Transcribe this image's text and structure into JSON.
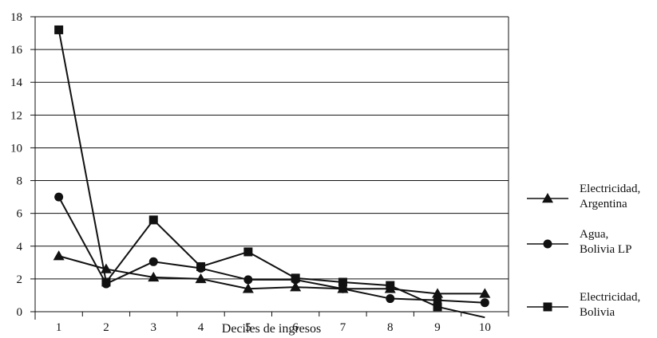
{
  "chart_data": {
    "type": "line",
    "title": "",
    "xlabel": "Deciles de ingresos",
    "ylabel": "",
    "x": [
      1,
      2,
      3,
      4,
      5,
      6,
      7,
      8,
      9,
      10
    ],
    "xlim": [
      0.5,
      10.5
    ],
    "ylim": [
      0,
      18
    ],
    "yticks": [
      0,
      2,
      4,
      6,
      8,
      10,
      12,
      14,
      16,
      18
    ],
    "grid": "horizontal",
    "legend_position": "right",
    "series": [
      {
        "name_lines": [
          "Electricidad,",
          "Argentina"
        ],
        "marker": "triangle",
        "values": [
          3.4,
          2.6,
          2.1,
          2.0,
          1.4,
          1.5,
          1.4,
          1.4,
          1.1,
          1.1
        ]
      },
      {
        "name_lines": [
          "Agua,",
          "Bolivia LP"
        ],
        "marker": "circle",
        "values": [
          7.0,
          1.7,
          3.05,
          2.65,
          1.95,
          1.95,
          1.4,
          0.8,
          0.7,
          0.55
        ]
      },
      {
        "name_lines": [
          "Electricidad,",
          "Bolivia"
        ],
        "marker": "square",
        "values": [
          17.2,
          1.8,
          5.6,
          2.75,
          3.65,
          2.05,
          1.8,
          1.6,
          0.3,
          -0.35
        ]
      }
    ]
  }
}
